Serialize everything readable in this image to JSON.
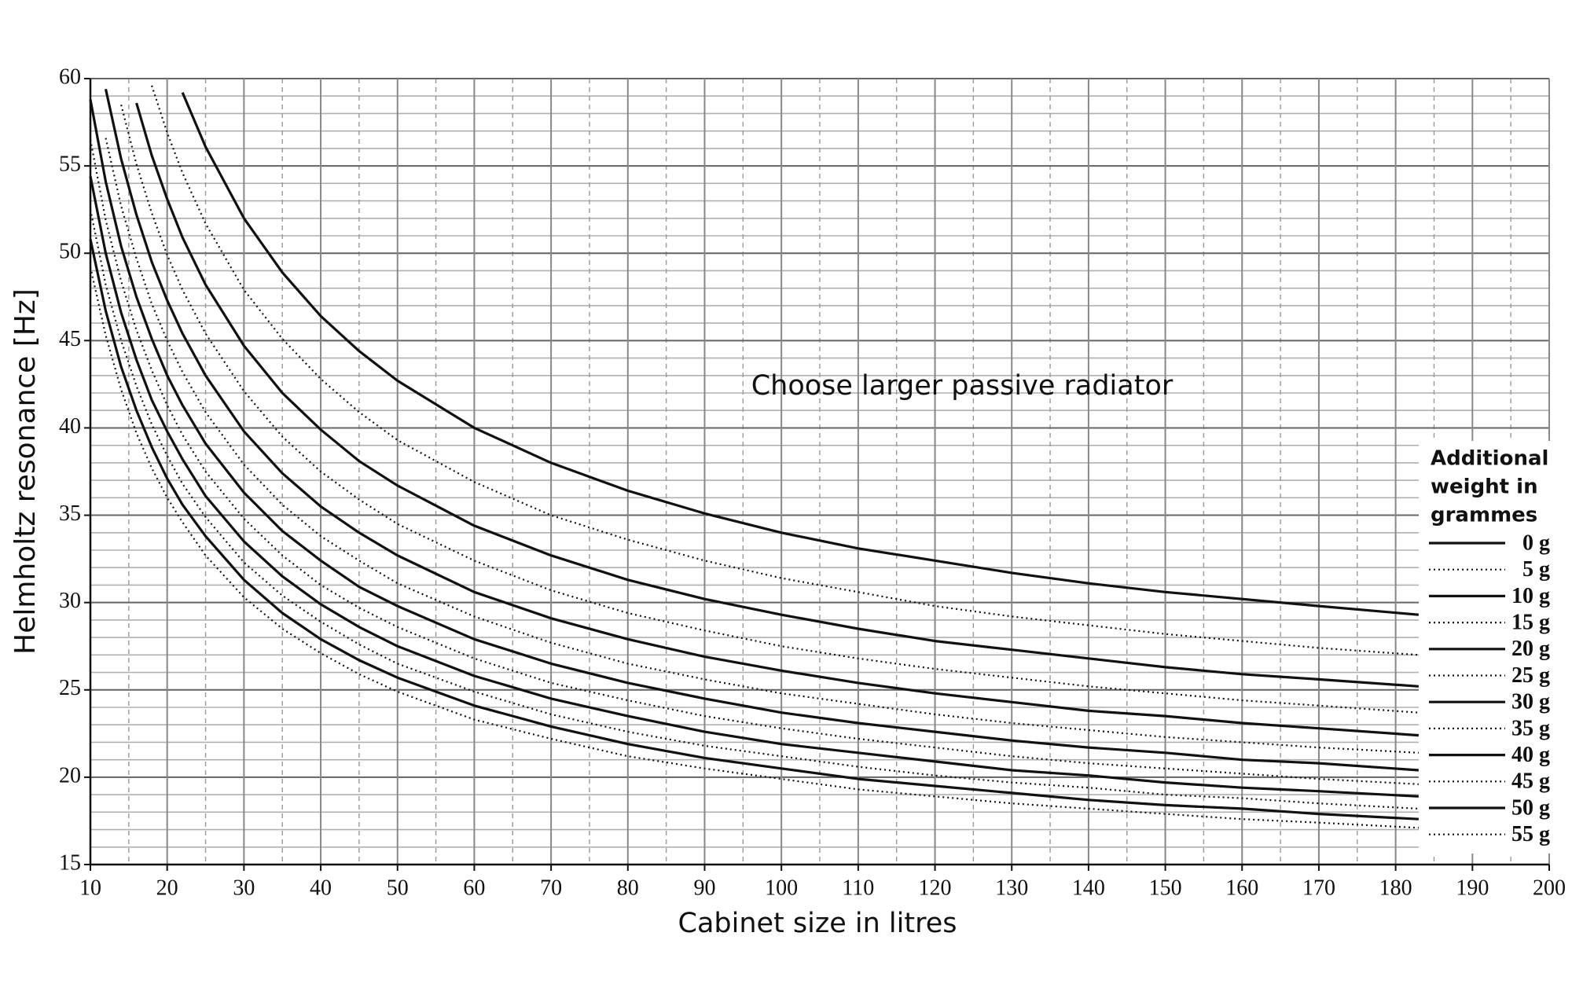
{
  "chart_data": {
    "type": "line",
    "annotation": "Choose larger passive radiator",
    "xlabel": "Cabinet size in litres",
    "ylabel": "Helmholtz resonance [Hz]",
    "legend_title": [
      "Additional",
      "weight in",
      "grammes"
    ],
    "legend": "right",
    "grid": true,
    "minor_grid": {
      "x": 5,
      "y": 1
    },
    "xlim": [
      10,
      200
    ],
    "ylim": [
      15,
      60
    ],
    "xticks": [
      10,
      20,
      30,
      40,
      50,
      60,
      70,
      80,
      90,
      100,
      110,
      120,
      130,
      140,
      150,
      160,
      170,
      180,
      190,
      200
    ],
    "yticks": [
      15,
      20,
      25,
      30,
      35,
      40,
      45,
      50,
      55,
      60
    ],
    "x": [
      10,
      12,
      14,
      16,
      18,
      20,
      22,
      25,
      30,
      35,
      40,
      45,
      50,
      60,
      70,
      80,
      90,
      100,
      110,
      120,
      130,
      140,
      150,
      160,
      170,
      183
    ],
    "series": [
      {
        "name": "0 g",
        "color": "#111111",
        "style": "solid",
        "values": [
          null,
          null,
          null,
          null,
          null,
          null,
          59.2,
          56.1,
          52.0,
          48.9,
          46.4,
          44.4,
          42.7,
          40.0,
          38.0,
          36.4,
          35.1,
          34.0,
          33.1,
          32.4,
          31.7,
          31.1,
          30.6,
          30.2,
          29.8,
          29.3
        ]
      },
      {
        "name": "5 g",
        "color": "#111111",
        "style": "dotted",
        "values": [
          null,
          null,
          null,
          null,
          59.6,
          56.9,
          54.6,
          51.7,
          47.9,
          45.1,
          42.8,
          40.9,
          39.3,
          36.9,
          35.0,
          33.6,
          32.4,
          31.4,
          30.6,
          29.8,
          29.2,
          28.7,
          28.2,
          27.8,
          27.4,
          27.0
        ]
      },
      {
        "name": "10 g",
        "color": "#111111",
        "style": "solid",
        "values": [
          null,
          null,
          null,
          58.6,
          55.6,
          53.1,
          50.9,
          48.2,
          44.7,
          42.0,
          39.9,
          38.1,
          36.7,
          34.4,
          32.7,
          31.3,
          30.2,
          29.3,
          28.5,
          27.8,
          27.3,
          26.8,
          26.3,
          25.9,
          25.6,
          25.2
        ]
      },
      {
        "name": "15 g",
        "color": "#111111",
        "style": "dotted",
        "values": [
          null,
          null,
          58.5,
          55.1,
          52.3,
          49.9,
          47.9,
          45.4,
          42.1,
          39.5,
          37.5,
          35.9,
          34.5,
          32.4,
          30.7,
          29.4,
          28.4,
          27.5,
          26.8,
          26.2,
          25.7,
          25.2,
          24.8,
          24.4,
          24.1,
          23.7
        ]
      },
      {
        "name": "20 g",
        "color": "#111111",
        "style": "solid",
        "values": [
          null,
          59.4,
          55.4,
          52.2,
          49.5,
          47.3,
          45.4,
          43.0,
          39.8,
          37.4,
          35.5,
          34.0,
          32.7,
          30.6,
          29.1,
          27.9,
          26.9,
          26.1,
          25.4,
          24.8,
          24.3,
          23.8,
          23.5,
          23.1,
          22.8,
          22.4
        ]
      },
      {
        "name": "25 g",
        "color": "#111111",
        "style": "dotted",
        "values": [
          null,
          56.6,
          52.7,
          49.7,
          47.1,
          45.0,
          43.2,
          40.9,
          37.9,
          35.6,
          33.8,
          32.4,
          31.1,
          29.2,
          27.7,
          26.5,
          25.6,
          24.8,
          24.2,
          23.6,
          23.1,
          22.7,
          22.3,
          22.0,
          21.7,
          21.4
        ]
      },
      {
        "name": "30 g",
        "color": "#111111",
        "style": "solid",
        "values": [
          58.8,
          54.1,
          50.4,
          47.5,
          45.1,
          43.0,
          41.3,
          39.1,
          36.3,
          34.1,
          32.4,
          30.9,
          29.8,
          27.9,
          26.5,
          25.4,
          24.5,
          23.7,
          23.1,
          22.6,
          22.1,
          21.7,
          21.4,
          21.0,
          20.8,
          20.4
        ]
      },
      {
        "name": "35 g",
        "color": "#111111",
        "style": "dotted",
        "values": [
          56.5,
          51.9,
          48.4,
          45.6,
          43.3,
          41.3,
          39.6,
          37.5,
          34.8,
          32.7,
          31.0,
          29.7,
          28.6,
          26.8,
          25.4,
          24.4,
          23.5,
          22.8,
          22.2,
          21.7,
          21.2,
          20.8,
          20.5,
          20.2,
          19.9,
          19.6
        ]
      },
      {
        "name": "40 g",
        "color": "#111111",
        "style": "solid",
        "values": [
          54.4,
          50.0,
          46.6,
          43.9,
          41.6,
          39.8,
          38.2,
          36.1,
          33.5,
          31.5,
          29.9,
          28.6,
          27.5,
          25.8,
          24.5,
          23.5,
          22.6,
          21.9,
          21.4,
          20.9,
          20.4,
          20.1,
          19.7,
          19.4,
          19.2,
          18.9
        ]
      },
      {
        "name": "45 g",
        "color": "#111111",
        "style": "dotted",
        "values": [
          52.5,
          48.2,
          45.0,
          42.4,
          40.2,
          38.4,
          36.8,
          34.9,
          32.3,
          30.4,
          28.9,
          27.6,
          26.5,
          24.9,
          23.6,
          22.6,
          21.8,
          21.2,
          20.6,
          20.1,
          19.7,
          19.4,
          19.0,
          18.8,
          18.5,
          18.2
        ]
      },
      {
        "name": "50 g",
        "color": "#111111",
        "style": "solid",
        "values": [
          50.8,
          46.7,
          43.5,
          41.0,
          38.9,
          37.1,
          35.6,
          33.8,
          31.3,
          29.4,
          27.9,
          26.7,
          25.7,
          24.1,
          22.9,
          21.9,
          21.1,
          20.5,
          19.9,
          19.5,
          19.1,
          18.7,
          18.4,
          18.2,
          17.9,
          17.6
        ]
      },
      {
        "name": "55 g",
        "color": "#111111",
        "style": "dotted",
        "values": [
          49.2,
          45.3,
          42.2,
          39.7,
          37.7,
          36.0,
          34.6,
          32.7,
          30.3,
          28.5,
          27.1,
          25.9,
          24.9,
          23.3,
          22.2,
          21.2,
          20.5,
          19.9,
          19.3,
          18.9,
          18.5,
          18.2,
          17.9,
          17.6,
          17.4,
          17.1
        ]
      }
    ]
  }
}
